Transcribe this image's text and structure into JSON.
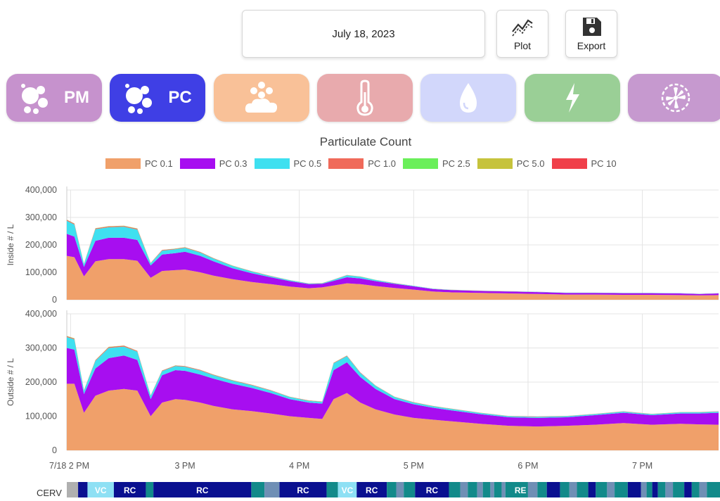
{
  "header": {
    "date": "July 18, 2023",
    "plot_label": "Plot",
    "export_label": "Export"
  },
  "tabs": [
    {
      "id": "pm",
      "label": "PM",
      "color": "#c692cd",
      "icon": "particles-icon",
      "active": false
    },
    {
      "id": "pc",
      "label": "PC",
      "color": "#3f3fe5",
      "icon": "particles-icon",
      "active": true
    },
    {
      "id": "voc",
      "label": "",
      "color": "#f9c198",
      "icon": "voc-cloud-icon",
      "active": false
    },
    {
      "id": "temp",
      "label": "",
      "color": "#e8aaad",
      "icon": "thermometer-icon",
      "active": false
    },
    {
      "id": "humidity",
      "label": "",
      "color": "#d2d7fb",
      "icon": "droplet-icon",
      "active": false
    },
    {
      "id": "energy",
      "label": "",
      "color": "#9acf96",
      "icon": "lightning-icon",
      "active": false
    },
    {
      "id": "fan",
      "label": "",
      "color": "#c699cf",
      "icon": "fan-icon",
      "active": false
    }
  ],
  "chart_data": {
    "type": "area",
    "title": "Particulate Count",
    "stacked": true,
    "x_ticks": [
      "7/18 2 PM",
      "3 PM",
      "4 PM",
      "5 PM",
      "6 PM",
      "7 PM"
    ],
    "x_range": [
      "13:58",
      "19:40"
    ],
    "x": [
      "13:58",
      "14:02",
      "14:07",
      "14:13",
      "14:20",
      "14:28",
      "14:35",
      "14:42",
      "14:48",
      "14:55",
      "15:00",
      "15:08",
      "15:15",
      "15:25",
      "15:35",
      "15:45",
      "15:55",
      "16:05",
      "16:12",
      "16:18",
      "16:25",
      "16:32",
      "16:40",
      "16:50",
      "17:00",
      "17:10",
      "17:20",
      "17:35",
      "17:50",
      "18:05",
      "18:20",
      "18:35",
      "18:50",
      "19:05",
      "19:20",
      "19:30",
      "19:40"
    ],
    "legend": [
      "PC 0.1",
      "PC 0.3",
      "PC 0.5",
      "PC 1.0",
      "PC 2.5",
      "PC 5.0",
      "PC 10"
    ],
    "colors": [
      "#f0a06a",
      "#a70ef0",
      "#3fe0f0",
      "#f06a5a",
      "#6aef5a",
      "#c6c33c",
      "#f0404a"
    ],
    "panels": [
      {
        "ylabel": "Inside # / L",
        "ylim": [
          0,
          400000
        ],
        "yticks": [
          "0",
          "100,000",
          "200,000",
          "300,000",
          "400,000"
        ],
        "series": [
          {
            "name": "PC 0.1",
            "values": [
              160000,
              155000,
              85000,
              140000,
              148000,
              148000,
              142000,
              80000,
              105000,
              108000,
              110000,
              100000,
              88000,
              75000,
              65000,
              57000,
              48000,
              42000,
              45000,
              52000,
              60000,
              57000,
              50000,
              43000,
              37000,
              30000,
              27000,
              25000,
              23000,
              21000,
              19000,
              19000,
              18000,
              18000,
              17000,
              16000,
              17000
            ]
          },
          {
            "name": "PC 0.3",
            "values": [
              80000,
              75000,
              35000,
              75000,
              78000,
              78000,
              76000,
              45000,
              60000,
              62000,
              65000,
              60000,
              52000,
              40000,
              32000,
              25000,
              20000,
              15000,
              13000,
              17000,
              22000,
              21000,
              18000,
              15000,
              12000,
              9000,
              8000,
              7000,
              7000,
              7000,
              6000,
              6000,
              6000,
              6000,
              6000,
              5000,
              6000
            ]
          },
          {
            "name": "PC 0.5",
            "values": [
              48000,
              44000,
              10000,
              42000,
              38000,
              40000,
              38000,
              8000,
              14000,
              14000,
              14000,
              12000,
              10000,
              8000,
              6000,
              4000,
              3000,
              2000,
              2000,
              4000,
              7000,
              6000,
              4000,
              2000,
              1500,
              1200,
              1000,
              900,
              800,
              700,
              600,
              600,
              600,
              600,
              500,
              500,
              500
            ]
          },
          {
            "name": "PC 1.0",
            "values": [
              3000,
              3000,
              1000,
              3000,
              3000,
              3000,
              3000,
              1000,
              2000,
              2000,
              2000,
              2000,
              1500,
              1200,
              1000,
              800,
              600,
              500,
              500,
              600,
              800,
              700,
              600,
              400,
              300,
              200,
              200,
              200,
              200,
              200,
              100,
              100,
              100,
              100,
              100,
              100,
              100
            ]
          },
          {
            "name": "PC 2.5",
            "values": [
              600,
              600,
              300,
              600,
              600,
              600,
              600,
              300,
              400,
              400,
              400,
              400,
              300,
              300,
              200,
              200,
              100,
              100,
              100,
              100,
              200,
              200,
              100,
              100,
              100,
              100,
              100,
              100,
              100,
              100,
              100,
              100,
              100,
              100,
              100,
              100,
              100
            ]
          },
          {
            "name": "PC 5.0",
            "values": [
              300,
              300,
              100,
              300,
              300,
              300,
              300,
              100,
              200,
              200,
              200,
              200,
              100,
              100,
              100,
              100,
              100,
              100,
              100,
              100,
              100,
              100,
              100,
              100,
              100,
              100,
              100,
              100,
              100,
              100,
              100,
              100,
              100,
              100,
              100,
              100,
              100
            ]
          },
          {
            "name": "PC 10",
            "values": [
              200,
              200,
              100,
              200,
              200,
              200,
              200,
              100,
              100,
              100,
              100,
              100,
              100,
              100,
              100,
              100,
              100,
              100,
              100,
              100,
              100,
              100,
              100,
              100,
              100,
              100,
              100,
              100,
              100,
              100,
              100,
              100,
              100,
              100,
              100,
              100,
              100
            ]
          }
        ]
      },
      {
        "ylabel": "Outside # / L",
        "ylim": [
          0,
          400000
        ],
        "yticks": [
          "0",
          "100,000",
          "200,000",
          "300,000",
          "400,000"
        ],
        "series": [
          {
            "name": "PC 0.1",
            "values": [
              195000,
              195000,
              110000,
              160000,
              175000,
              180000,
              175000,
              100000,
              140000,
              150000,
              148000,
              140000,
              130000,
              120000,
              115000,
              108000,
              100000,
              95000,
              92000,
              150000,
              168000,
              140000,
              120000,
              105000,
              95000,
              90000,
              85000,
              78000,
              72000,
              70000,
              72000,
              75000,
              80000,
              75000,
              78000,
              76000,
              75000
            ]
          },
          {
            "name": "PC 0.3",
            "values": [
              105000,
              100000,
              55000,
              80000,
              95000,
              98000,
              90000,
              50000,
              80000,
              85000,
              85000,
              82000,
              80000,
              75000,
              68000,
              60000,
              50000,
              45000,
              45000,
              85000,
              90000,
              75000,
              60000,
              45000,
              40000,
              35000,
              32000,
              28000,
              25000,
              25000,
              25000,
              28000,
              30000,
              28000,
              30000,
              32000,
              35000
            ]
          },
          {
            "name": "PC 0.5",
            "values": [
              32000,
              30000,
              10000,
              22000,
              30000,
              26000,
              24000,
              10000,
              12000,
              12000,
              12000,
              12000,
              10000,
              9000,
              8000,
              7000,
              6000,
              5000,
              5000,
              20000,
              18000,
              12000,
              9000,
              6000,
              5000,
              4500,
              4000,
              3500,
              3000,
              3000,
              3000,
              3200,
              3500,
              3200,
              3300,
              3400,
              3500
            ]
          },
          {
            "name": "PC 1.0",
            "values": [
              2500,
              2500,
              1000,
              2000,
              2500,
              2500,
              2000,
              1000,
              1500,
              1500,
              1500,
              1500,
              1500,
              1200,
              1200,
              1000,
              1000,
              900,
              900,
              1500,
              1500,
              1200,
              1000,
              900,
              800,
              700,
              700,
              600,
              600,
              600,
              600,
              600,
              600,
              600,
              600,
              600,
              600
            ]
          },
          {
            "name": "PC 2.5",
            "values": [
              500,
              500,
              200,
              400,
              500,
              500,
              400,
              200,
              300,
              300,
              300,
              300,
              300,
              300,
              200,
              200,
              200,
              200,
              200,
              300,
              300,
              200,
              200,
              200,
              200,
              200,
              100,
              100,
              100,
              100,
              100,
              100,
              100,
              100,
              100,
              100,
              100
            ]
          },
          {
            "name": "PC 5.0",
            "values": [
              200,
              200,
              100,
              200,
              200,
              200,
              200,
              100,
              100,
              100,
              100,
              100,
              100,
              100,
              100,
              100,
              100,
              100,
              100,
              100,
              100,
              100,
              100,
              100,
              100,
              100,
              100,
              100,
              100,
              100,
              100,
              100,
              100,
              100,
              100,
              100,
              100
            ]
          },
          {
            "name": "PC 10",
            "values": [
              100,
              100,
              100,
              100,
              100,
              100,
              100,
              100,
              100,
              100,
              100,
              100,
              100,
              100,
              100,
              100,
              100,
              100,
              100,
              100,
              100,
              100,
              100,
              100,
              100,
              100,
              100,
              100,
              100,
              100,
              100,
              100,
              100,
              100,
              100,
              100,
              100
            ]
          }
        ]
      }
    ]
  },
  "cerv_timeline": {
    "label": "CERV",
    "colors": {
      "gray": "#b0b0b0",
      "navy": "#0a1090",
      "light": "#8ee0f4",
      "teal": "#128a8a",
      "slate": "#6f8fb5"
    },
    "segments": [
      {
        "start": "13:55",
        "end": "14:01",
        "color": "gray",
        "label": ""
      },
      {
        "start": "14:01",
        "end": "14:06",
        "color": "navy",
        "label": ""
      },
      {
        "start": "14:06",
        "end": "14:20",
        "color": "light",
        "label": "VC"
      },
      {
        "start": "14:20",
        "end": "14:37",
        "color": "navy",
        "label": "RC"
      },
      {
        "start": "14:37",
        "end": "14:41",
        "color": "teal",
        "label": ""
      },
      {
        "start": "14:41",
        "end": "15:33",
        "color": "navy",
        "label": "RC"
      },
      {
        "start": "15:33",
        "end": "15:40",
        "color": "teal",
        "label": ""
      },
      {
        "start": "15:40",
        "end": "15:48",
        "color": "slate",
        "label": ""
      },
      {
        "start": "15:48",
        "end": "16:13",
        "color": "navy",
        "label": "RC"
      },
      {
        "start": "16:13",
        "end": "16:19",
        "color": "teal",
        "label": ""
      },
      {
        "start": "16:19",
        "end": "16:29",
        "color": "light",
        "label": "VC"
      },
      {
        "start": "16:29",
        "end": "16:45",
        "color": "navy",
        "label": "RC"
      },
      {
        "start": "16:45",
        "end": "16:50",
        "color": "teal",
        "label": ""
      },
      {
        "start": "16:50",
        "end": "16:54",
        "color": "slate",
        "label": ""
      },
      {
        "start": "16:54",
        "end": "17:00",
        "color": "teal",
        "label": ""
      },
      {
        "start": "17:00",
        "end": "17:18",
        "color": "navy",
        "label": "RC"
      },
      {
        "start": "17:18",
        "end": "17:24",
        "color": "teal",
        "label": ""
      },
      {
        "start": "17:24",
        "end": "17:28",
        "color": "slate",
        "label": ""
      },
      {
        "start": "17:28",
        "end": "17:33",
        "color": "teal",
        "label": ""
      },
      {
        "start": "17:33",
        "end": "17:36",
        "color": "slate",
        "label": ""
      },
      {
        "start": "17:36",
        "end": "17:40",
        "color": "teal",
        "label": ""
      },
      {
        "start": "17:40",
        "end": "17:42",
        "color": "slate",
        "label": ""
      },
      {
        "start": "17:42",
        "end": "17:46",
        "color": "teal",
        "label": ""
      },
      {
        "start": "17:46",
        "end": "17:48",
        "color": "slate",
        "label": ""
      },
      {
        "start": "17:48",
        "end": "17:52",
        "color": "teal",
        "label": ""
      },
      {
        "start": "17:52",
        "end": "18:00",
        "color": "teal",
        "label": "RE"
      },
      {
        "start": "18:00",
        "end": "18:05",
        "color": "slate",
        "label": ""
      },
      {
        "start": "18:05",
        "end": "18:10",
        "color": "teal",
        "label": ""
      },
      {
        "start": "18:10",
        "end": "18:17",
        "color": "navy",
        "label": ""
      },
      {
        "start": "18:17",
        "end": "18:22",
        "color": "teal",
        "label": ""
      },
      {
        "start": "18:22",
        "end": "18:26",
        "color": "slate",
        "label": ""
      },
      {
        "start": "18:26",
        "end": "18:32",
        "color": "teal",
        "label": ""
      },
      {
        "start": "18:32",
        "end": "18:36",
        "color": "navy",
        "label": ""
      },
      {
        "start": "18:36",
        "end": "18:42",
        "color": "teal",
        "label": ""
      },
      {
        "start": "18:42",
        "end": "18:46",
        "color": "slate",
        "label": ""
      },
      {
        "start": "18:46",
        "end": "18:53",
        "color": "teal",
        "label": ""
      },
      {
        "start": "18:53",
        "end": "19:00",
        "color": "navy",
        "label": ""
      },
      {
        "start": "19:00",
        "end": "19:03",
        "color": "slate",
        "label": ""
      },
      {
        "start": "19:03",
        "end": "19:06",
        "color": "teal",
        "label": ""
      },
      {
        "start": "19:06",
        "end": "19:09",
        "color": "navy",
        "label": ""
      },
      {
        "start": "19:09",
        "end": "19:13",
        "color": "teal",
        "label": ""
      },
      {
        "start": "19:13",
        "end": "19:17",
        "color": "slate",
        "label": ""
      },
      {
        "start": "19:17",
        "end": "19:23",
        "color": "teal",
        "label": ""
      },
      {
        "start": "19:23",
        "end": "19:27",
        "color": "navy",
        "label": ""
      },
      {
        "start": "19:27",
        "end": "19:31",
        "color": "teal",
        "label": ""
      },
      {
        "start": "19:31",
        "end": "19:35",
        "color": "slate",
        "label": ""
      },
      {
        "start": "19:35",
        "end": "19:42",
        "color": "teal",
        "label": ""
      }
    ]
  }
}
